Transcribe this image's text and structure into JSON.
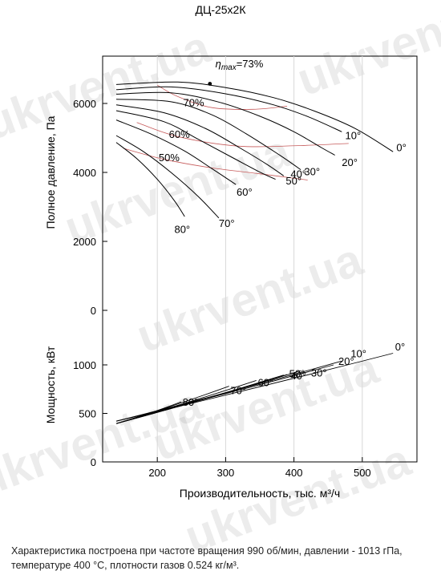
{
  "chart_data": {
    "type": "line",
    "title": "ДЦ-25x2К",
    "xlabel": "Производительность, тыс. м³/ч",
    "x_ticks": [
      200,
      300,
      400,
      500
    ],
    "xlim": [
      120,
      580
    ],
    "pressure_panel": {
      "ylabel": "Полное давление, Па",
      "y_ticks": [
        0,
        2000,
        4000,
        6000
      ],
      "ylim": [
        0,
        7300
      ],
      "series": [
        {
          "name": "0°",
          "points": [
            [
              140,
              6550
            ],
            [
              230,
              6620
            ],
            [
              300,
              6460
            ],
            [
              370,
              6170
            ],
            [
              430,
              5780
            ],
            [
              490,
              5270
            ],
            [
              545,
              4600
            ]
          ],
          "label_at": [
            550,
            4620
          ]
        },
        {
          "name": "10°",
          "points": [
            [
              140,
              6400
            ],
            [
              220,
              6480
            ],
            [
              300,
              6280
            ],
            [
              370,
              5960
            ],
            [
              420,
              5620
            ],
            [
              470,
              5180
            ]
          ],
          "label_at": [
            475,
            4960
          ]
        },
        {
          "name": "20°",
          "points": [
            [
              140,
              6270
            ],
            [
              220,
              6310
            ],
            [
              290,
              6040
            ],
            [
              350,
              5630
            ],
            [
              400,
              5180
            ],
            [
              440,
              4720
            ],
            [
              460,
              4500
            ]
          ],
          "label_at": [
            470,
            4190
          ]
        },
        {
          "name": "30°",
          "points": [
            [
              140,
              6120
            ],
            [
              220,
              6050
            ],
            [
              280,
              5670
            ],
            [
              330,
              5120
            ],
            [
              380,
              4490
            ],
            [
              410,
              4080
            ]
          ],
          "label_at": [
            415,
            3920
          ]
        },
        {
          "name": "40°",
          "points": [
            [
              140,
              5960
            ],
            [
              210,
              5730
            ],
            [
              270,
              5280
            ],
            [
              320,
              4720
            ],
            [
              360,
              4240
            ],
            [
              385,
              3900
            ]
          ],
          "label_at": [
            395,
            3850
          ]
        },
        {
          "name": "50°",
          "points": [
            [
              140,
              5790
            ],
            [
              210,
              5470
            ],
            [
              260,
              4960
            ],
            [
              310,
              4430
            ],
            [
              350,
              4010
            ],
            [
              373,
              3800
            ]
          ],
          "label_at": [
            388,
            3650
          ]
        },
        {
          "name": "60°",
          "points": [
            [
              140,
              5520
            ],
            [
              190,
              5120
            ],
            [
              240,
              4620
            ],
            [
              280,
              4110
            ],
            [
              315,
              3650
            ]
          ],
          "label_at": [
            316,
            3320
          ]
        },
        {
          "name": "70°",
          "points": [
            [
              140,
              5070
            ],
            [
              180,
              4600
            ],
            [
              220,
              4000
            ],
            [
              260,
              3300
            ],
            [
              290,
              2680
            ]
          ],
          "label_at": [
            290,
            2420
          ]
        },
        {
          "name": "80°",
          "points": [
            [
              140,
              4870
            ],
            [
              170,
              4400
            ],
            [
              200,
              3800
            ],
            [
              225,
              3180
            ],
            [
              240,
              2720
            ]
          ],
          "label_at": [
            225,
            2240
          ]
        }
      ],
      "efficiency_curves": [
        {
          "label": "70%",
          "points": [
            [
              200,
              6530
            ],
            [
              230,
              6200
            ],
            [
              280,
              5880
            ],
            [
              340,
              5830
            ],
            [
              390,
              5920
            ]
          ],
          "label_at": [
            238,
            5920
          ]
        },
        {
          "label": "60%",
          "points": [
            [
              170,
              5450
            ],
            [
              230,
              5040
            ],
            [
              320,
              4760
            ],
            [
              410,
              4780
            ],
            [
              480,
              4840
            ]
          ],
          "label_at": [
            217,
            5000
          ]
        },
        {
          "label": "50%",
          "points": [
            [
              150,
              4700
            ],
            [
              210,
              4380
            ],
            [
              280,
              4130
            ],
            [
              350,
              3960
            ],
            [
              420,
              3780
            ]
          ],
          "label_at": [
            202,
            4320
          ]
        }
      ],
      "annotation": {
        "text_main": "η",
        "text_sub": "max",
        "text_rest": "=73%",
        "point": [
          277,
          6570
        ],
        "label_at": [
          285,
          7050
        ]
      },
      "colors": {
        "curves": "#000000",
        "efficiency": "#c65a5a"
      }
    },
    "power_panel": {
      "ylabel": "Мощность, кВт",
      "y_ticks": [
        0,
        500,
        1000
      ],
      "ylim": [
        0,
        1250
      ],
      "series": [
        {
          "name": "0°",
          "endpoint": [
            545,
            1120
          ],
          "label_at": [
            548,
            1150
          ]
        },
        {
          "name": "10°",
          "endpoint": [
            470,
            1040
          ],
          "label_at": [
            483,
            1080
          ]
        },
        {
          "name": "20°",
          "endpoint": [
            458,
            1000
          ],
          "label_at": [
            465,
            1000
          ]
        },
        {
          "name": "30°",
          "endpoint": [
            410,
            940
          ],
          "label_at": [
            425,
            880
          ]
        },
        {
          "name": "40°",
          "endpoint": [
            390,
            900
          ],
          "label_at": [
            395,
            850
          ]
        },
        {
          "name": "50°",
          "endpoint": [
            385,
            895
          ],
          "label_at": [
            393,
            870
          ]
        },
        {
          "name": "60°",
          "endpoint": [
            345,
            840
          ],
          "label_at": [
            347,
            780
          ]
        },
        {
          "name": "70°",
          "endpoint": [
            305,
            780
          ],
          "label_at": [
            307,
            700
          ]
        },
        {
          "name": "80°",
          "endpoint": [
            235,
            620
          ],
          "label_at": [
            237,
            580
          ]
        }
      ],
      "start_points": [
        [
          140,
          395
        ],
        [
          140,
          420
        ]
      ]
    }
  },
  "watermark": "ukrvent.ua",
  "footnote": "Характеристика построена при частоте вращения 990 об/мин, давлении - 1013 гПа, температуре 400 °С, плотности газов 0.524 кг/м³."
}
